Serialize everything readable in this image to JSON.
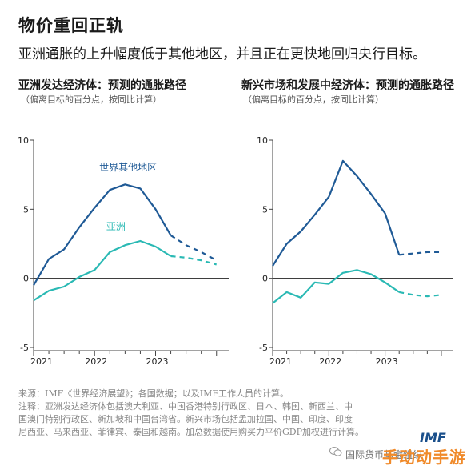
{
  "title": "物价重回正轨",
  "subtitle": "亚洲通胀的上升幅度低于其他地区，并且正在更快地回归央行目标。",
  "panels": [
    {
      "title": "亚洲发达经济体：预测的通胀路径",
      "subtitle": "（偏离目标的百分点，按同比计算）"
    },
    {
      "title": "新兴市场和发展中经济体：预测的通胀路径",
      "subtitle": "（偏离目标的百分点，按同比计算）"
    }
  ],
  "notes": [
    "来源：IMF《世界经济展望》；各国数据；以及IMF工作人员的计算。",
    "注释：亚洲发达经济体包括澳大利亚、中国香港特别行政区、日本、韩国、新西兰、中",
    "国澳门特别行政区、新加坡和中国台湾省。新兴市场包括孟加拉国、中国、印度、印度",
    "尼西亚、马来西亚、菲律宾、泰国和越南。加总数据使用购买力平价GDP加权进行计算。"
  ],
  "brand": {
    "account": "国际货币基金组织",
    "logo": "IMF",
    "watermark": "手动动手游"
  },
  "colors": {
    "rest_of_world": "#1f5a96",
    "asia": "#2ab9b4",
    "axis": "#222222"
  },
  "chart_data": [
    {
      "type": "line",
      "title": "亚洲发达经济体：预测的通胀路径",
      "subtitle": "（偏离目标的百分点，按同比计算）",
      "ylim": [
        -5,
        10
      ],
      "yticks": [
        -5,
        0,
        5,
        10
      ],
      "xlim": [
        2021,
        2024.2
      ],
      "xticks": [
        "2021",
        "2022",
        "2023"
      ],
      "forecast_from": 2023.25,
      "series": [
        {
          "name": "世界其他地区",
          "color": "#1f5a96",
          "x": [
            2021.0,
            2021.25,
            2021.5,
            2021.75,
            2022.0,
            2022.25,
            2022.5,
            2022.75,
            2023.0,
            2023.25,
            2023.5,
            2023.75,
            2024.0
          ],
          "y": [
            -0.5,
            1.4,
            2.1,
            3.7,
            5.1,
            6.4,
            6.8,
            6.5,
            5.0,
            3.1,
            2.4,
            1.9,
            1.3
          ]
        },
        {
          "name": "亚洲",
          "color": "#2ab9b4",
          "x": [
            2021.0,
            2021.25,
            2021.5,
            2021.75,
            2022.0,
            2022.25,
            2022.5,
            2022.75,
            2023.0,
            2023.25,
            2023.5,
            2023.75,
            2024.0
          ],
          "y": [
            -1.6,
            -0.9,
            -0.6,
            0.1,
            0.6,
            1.9,
            2.4,
            2.7,
            2.3,
            1.6,
            1.5,
            1.3,
            1.0
          ]
        }
      ]
    },
    {
      "type": "line",
      "title": "新兴市场和发展中经济体：预测的通胀路径",
      "subtitle": "（偏离目标的百分点，按同比计算）",
      "ylim": [
        -5,
        10
      ],
      "yticks": [
        -5,
        0,
        5,
        10
      ],
      "xlim": [
        2021,
        2024.2
      ],
      "xticks": [
        "2021",
        "2022",
        "2023"
      ],
      "forecast_from": 2023.25,
      "series": [
        {
          "name": "世界其他地区",
          "color": "#1f5a96",
          "x": [
            2021.0,
            2021.25,
            2021.5,
            2021.75,
            2022.0,
            2022.25,
            2022.5,
            2022.75,
            2023.0,
            2023.25,
            2023.5,
            2023.75,
            2024.0
          ],
          "y": [
            0.9,
            2.5,
            3.4,
            4.6,
            5.9,
            8.5,
            7.4,
            6.1,
            4.7,
            1.7,
            1.8,
            1.9,
            1.9
          ]
        },
        {
          "name": "亚洲",
          "color": "#2ab9b4",
          "x": [
            2021.0,
            2021.25,
            2021.5,
            2021.75,
            2022.0,
            2022.25,
            2022.5,
            2022.75,
            2023.0,
            2023.25,
            2023.5,
            2023.75,
            2024.0
          ],
          "y": [
            -1.8,
            -1.0,
            -1.4,
            -0.3,
            -0.4,
            0.4,
            0.6,
            0.3,
            -0.3,
            -1.0,
            -1.2,
            -1.3,
            -1.2
          ]
        }
      ]
    }
  ]
}
